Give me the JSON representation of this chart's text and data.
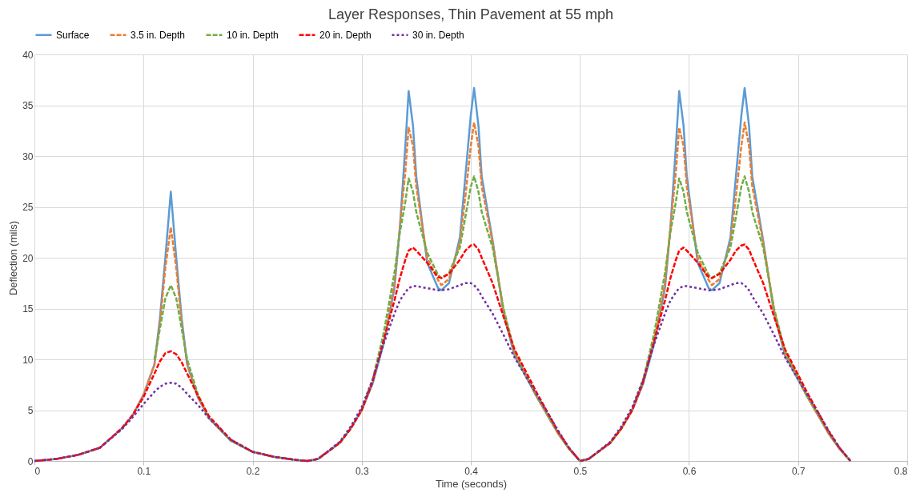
{
  "chart_data": {
    "type": "line",
    "title": "Layer Responses, Thin Pavement at 55 mph",
    "xlabel": "Time (seconds)",
    "ylabel": "Deflection (mils)",
    "x": [
      0,
      0.02,
      0.04,
      0.06,
      0.08,
      0.09,
      0.1,
      0.11,
      0.115,
      0.12,
      0.125,
      0.13,
      0.135,
      0.14,
      0.15,
      0.16,
      0.18,
      0.2,
      0.22,
      0.24,
      0.25,
      0.26,
      0.28,
      0.29,
      0.3,
      0.31,
      0.32,
      0.33,
      0.335,
      0.34,
      0.343,
      0.347,
      0.35,
      0.36,
      0.37,
      0.373,
      0.38,
      0.39,
      0.395,
      0.4,
      0.403,
      0.407,
      0.41,
      0.42,
      0.43,
      0.44,
      0.46,
      0.48,
      0.49,
      0.5,
      0.508,
      0.528,
      0.538,
      0.548,
      0.558,
      0.568,
      0.578,
      0.583,
      0.588,
      0.591,
      0.595,
      0.598,
      0.608,
      0.618,
      0.621,
      0.628,
      0.638,
      0.643,
      0.648,
      0.651,
      0.655,
      0.658,
      0.668,
      0.678,
      0.688,
      0.708,
      0.728,
      0.738,
      0.748
    ],
    "series": [
      {
        "name": "Surface",
        "color": "#5b9bd5",
        "line_style": "solid",
        "values": [
          0,
          0.2,
          0.6,
          1.3,
          3.2,
          4.5,
          6.5,
          9.5,
          14,
          20,
          26.5,
          20,
          14,
          9.5,
          6.2,
          4.2,
          2.0,
          0.9,
          0.4,
          0.1,
          0,
          0.2,
          1.8,
          3.2,
          5.0,
          7.6,
          11.5,
          17,
          23,
          31,
          36.4,
          33,
          28,
          19.5,
          17,
          16.8,
          17.5,
          22,
          28,
          34,
          36.7,
          33,
          28,
          21.7,
          14.5,
          10.4,
          6.4,
          2.7,
          1.2,
          0,
          0.2,
          1.8,
          3.2,
          5.0,
          7.6,
          11.5,
          17,
          23,
          31,
          36.4,
          33,
          28,
          19.5,
          17,
          16.8,
          17.5,
          22,
          28,
          34,
          36.7,
          33,
          28,
          21.7,
          14.5,
          10.4,
          6.4,
          2.7,
          1.2,
          0
        ]
      },
      {
        "name": "3.5 in. Depth",
        "color": "#ed7d31",
        "line_style": "dashed",
        "values": [
          0,
          0.2,
          0.6,
          1.3,
          3.2,
          4.5,
          6.5,
          9.5,
          13.5,
          19,
          23,
          19,
          13.5,
          9.6,
          6.3,
          4.2,
          2,
          0.9,
          0.4,
          0.1,
          0,
          0.2,
          1.8,
          3.2,
          5.0,
          7.8,
          11.8,
          17.5,
          23,
          28.5,
          32.8,
          31,
          27,
          20,
          17.8,
          17.3,
          17.9,
          21.5,
          26,
          31,
          33.3,
          31,
          27,
          21.5,
          14.8,
          10.6,
          6.4,
          2.7,
          1.2,
          0,
          0.2,
          1.8,
          3.2,
          5.0,
          7.8,
          11.8,
          17.5,
          23,
          28.5,
          32.8,
          31,
          27,
          20,
          17.8,
          17.3,
          17.9,
          21.5,
          26,
          31,
          33.3,
          31,
          27,
          21.5,
          14.8,
          10.6,
          6.4,
          2.7,
          1.2,
          0
        ]
      },
      {
        "name": "10 in. Depth",
        "color": "#70ad47",
        "line_style": "dashed",
        "values": [
          null,
          null,
          null,
          null,
          null,
          null,
          null,
          10,
          13,
          16,
          17.3,
          16,
          13,
          10,
          6.5,
          4.3,
          2,
          0.9,
          0.4,
          0.1,
          0,
          0.2,
          1.8,
          3.2,
          5.1,
          8,
          12.5,
          18.5,
          22.5,
          25.5,
          27.8,
          26.5,
          24.5,
          20.5,
          18.3,
          18,
          18.5,
          21,
          24,
          27,
          28,
          26.5,
          24.5,
          21,
          15,
          10.8,
          6.5,
          2.8,
          1.2,
          0,
          0.2,
          1.8,
          3.2,
          5.1,
          8,
          12.5,
          18.5,
          22.5,
          25.5,
          27.8,
          26.5,
          24.5,
          20.5,
          18.3,
          18,
          18.5,
          21,
          24,
          27,
          28,
          26.5,
          24.5,
          21,
          15,
          10.8,
          6.5,
          2.8,
          1.2,
          0
        ]
      },
      {
        "name": "20 in. Depth",
        "color": "#ff0000",
        "line_style": "dashed",
        "values": [
          0,
          0.2,
          0.6,
          1.3,
          3.2,
          4.5,
          6.3,
          8.6,
          9.8,
          10.6,
          10.8,
          10.5,
          9.7,
          8.6,
          6.4,
          4.4,
          2.1,
          0.9,
          0.4,
          0.1,
          0,
          0.2,
          1.8,
          3.2,
          5.0,
          7.8,
          11.8,
          15.8,
          18,
          19.8,
          20.7,
          21,
          20.7,
          19.5,
          18.1,
          18,
          18.4,
          19.8,
          20.7,
          21.2,
          21.3,
          20.8,
          20,
          17.5,
          14.2,
          11,
          6.8,
          2.9,
          1.3,
          0,
          0.2,
          1.8,
          3.2,
          5.0,
          7.8,
          11.8,
          15.8,
          18,
          19.8,
          20.7,
          21,
          20.7,
          19.5,
          18.1,
          18,
          18.4,
          19.8,
          20.7,
          21.2,
          21.3,
          20.8,
          20,
          17.5,
          14.2,
          11,
          6.8,
          2.9,
          1.3,
          0
        ]
      },
      {
        "name": "30 in. Depth",
        "color": "#7030a0",
        "line_style": "dotted",
        "values": [
          0,
          0.2,
          0.6,
          1.3,
          3.1,
          4.3,
          5.6,
          6.8,
          7.3,
          7.6,
          7.7,
          7.6,
          7.2,
          6.6,
          5.5,
          4.2,
          2.1,
          0.9,
          0.4,
          0.1,
          0,
          0.2,
          1.9,
          3.4,
          5.3,
          8,
          11.5,
          14.5,
          15.8,
          16.6,
          17,
          17.2,
          17.2,
          17,
          16.8,
          16.8,
          16.9,
          17.3,
          17.5,
          17.5,
          17.3,
          16.8,
          16.2,
          14.5,
          12.4,
          10.2,
          6.6,
          3.0,
          1.3,
          0,
          0.2,
          1.9,
          3.4,
          5.3,
          8,
          11.5,
          14.5,
          15.8,
          16.6,
          17,
          17.2,
          17.2,
          17,
          16.8,
          16.8,
          16.9,
          17.3,
          17.5,
          17.5,
          17.3,
          16.8,
          16.2,
          14.5,
          12.4,
          10.2,
          6.6,
          3.0,
          1.3,
          0
        ]
      }
    ],
    "xlim": [
      0,
      0.8
    ],
    "xticks": [
      0,
      0.1,
      0.2,
      0.3,
      0.4,
      0.5,
      0.6,
      0.7,
      0.8
    ],
    "ylim": [
      0,
      40
    ],
    "yticks": [
      0,
      5,
      10,
      15,
      20,
      25,
      30,
      35,
      40
    ],
    "grid": true,
    "legend": "top",
    "marker": "none"
  }
}
